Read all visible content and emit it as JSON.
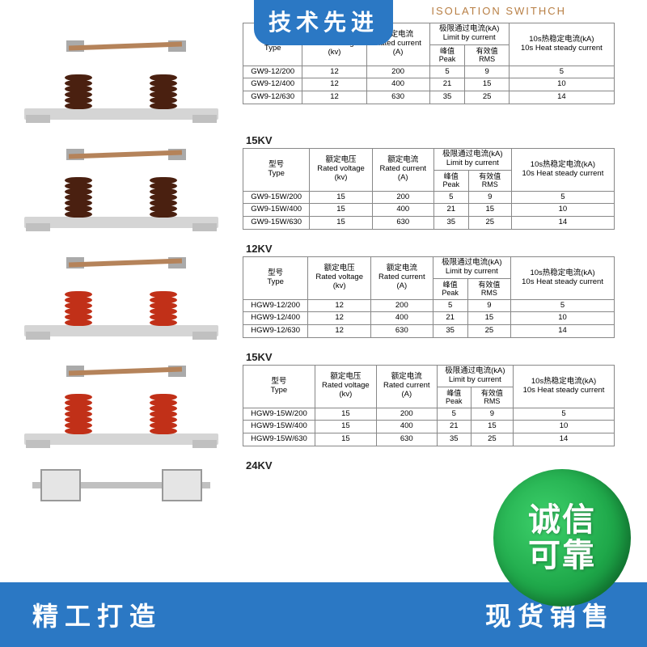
{
  "badges": {
    "top": "技术先进",
    "trust_line1": "诚信",
    "trust_line2": "可靠"
  },
  "banner": {
    "left": "精工打造",
    "right": "现货销售"
  },
  "header_subtitle": "ISOLATION SWITHCH",
  "colors": {
    "primary_blue": "#2b78c4",
    "trust_green_light": "#3dd16b",
    "trust_green_dark": "#0d7a2e",
    "insulator_brown": "#4a2010",
    "insulator_red": "#c13018",
    "connector_copper": "#b5835a",
    "base_gray": "#d5d5d5",
    "header_gold": "#b87f45"
  },
  "columns": {
    "type": {
      "cn": "型号",
      "en": "Type"
    },
    "voltage": {
      "cn": "额定电压",
      "en": "Rated voltage",
      "unit": "(kv)"
    },
    "current": {
      "cn": "额定电流",
      "en": "Rated current",
      "unit": "(A)"
    },
    "limit_group": {
      "cn": "极限通过电流(kA)",
      "en": "Limit by current"
    },
    "peak": {
      "cn": "峰值",
      "en": "Peak"
    },
    "rms": {
      "cn": "有效值",
      "en": "RMS"
    },
    "heat": {
      "cn": "10s热稳定电流(kA)",
      "en": "10s Heat steady current"
    }
  },
  "sections": [
    {
      "label": "",
      "insulator_color": "brown",
      "disc_count": 6,
      "rows": [
        {
          "type": "GW9-12/200",
          "voltage": "12",
          "current": "200",
          "peak": "5",
          "rms": "9",
          "heat": "5"
        },
        {
          "type": "GW9-12/400",
          "voltage": "12",
          "current": "400",
          "peak": "21",
          "rms": "15",
          "heat": "10"
        },
        {
          "type": "GW9-12/630",
          "voltage": "12",
          "current": "630",
          "peak": "35",
          "rms": "25",
          "heat": "14"
        }
      ]
    },
    {
      "label": "15KV",
      "insulator_color": "brown",
      "disc_count": 7,
      "rows": [
        {
          "type": "GW9-15W/200",
          "voltage": "15",
          "current": "200",
          "peak": "5",
          "rms": "9",
          "heat": "5"
        },
        {
          "type": "GW9-15W/400",
          "voltage": "15",
          "current": "400",
          "peak": "21",
          "rms": "15",
          "heat": "10"
        },
        {
          "type": "GW9-15W/630",
          "voltage": "15",
          "current": "630",
          "peak": "35",
          "rms": "25",
          "heat": "14"
        }
      ]
    },
    {
      "label": "12KV",
      "insulator_color": "red",
      "disc_count": 6,
      "rows": [
        {
          "type": "HGW9-12/200",
          "voltage": "12",
          "current": "200",
          "peak": "5",
          "rms": "9",
          "heat": "5"
        },
        {
          "type": "HGW9-12/400",
          "voltage": "12",
          "current": "400",
          "peak": "21",
          "rms": "15",
          "heat": "10"
        },
        {
          "type": "HGW9-12/630",
          "voltage": "12",
          "current": "630",
          "peak": "35",
          "rms": "25",
          "heat": "14"
        }
      ]
    },
    {
      "label": "15KV",
      "insulator_color": "red",
      "disc_count": 7,
      "rows": [
        {
          "type": "HGW9-15W/200",
          "voltage": "15",
          "current": "200",
          "peak": "5",
          "rms": "9",
          "heat": "5"
        },
        {
          "type": "HGW9-15W/400",
          "voltage": "15",
          "current": "400",
          "peak": "21",
          "rms": "15",
          "heat": "10"
        },
        {
          "type": "HGW9-15W/630",
          "voltage": "15",
          "current": "630",
          "peak": "35",
          "rms": "25",
          "heat": "14"
        }
      ]
    },
    {
      "label": "24KV",
      "insulator_color": "none",
      "disc_count": 0,
      "rows": []
    }
  ]
}
